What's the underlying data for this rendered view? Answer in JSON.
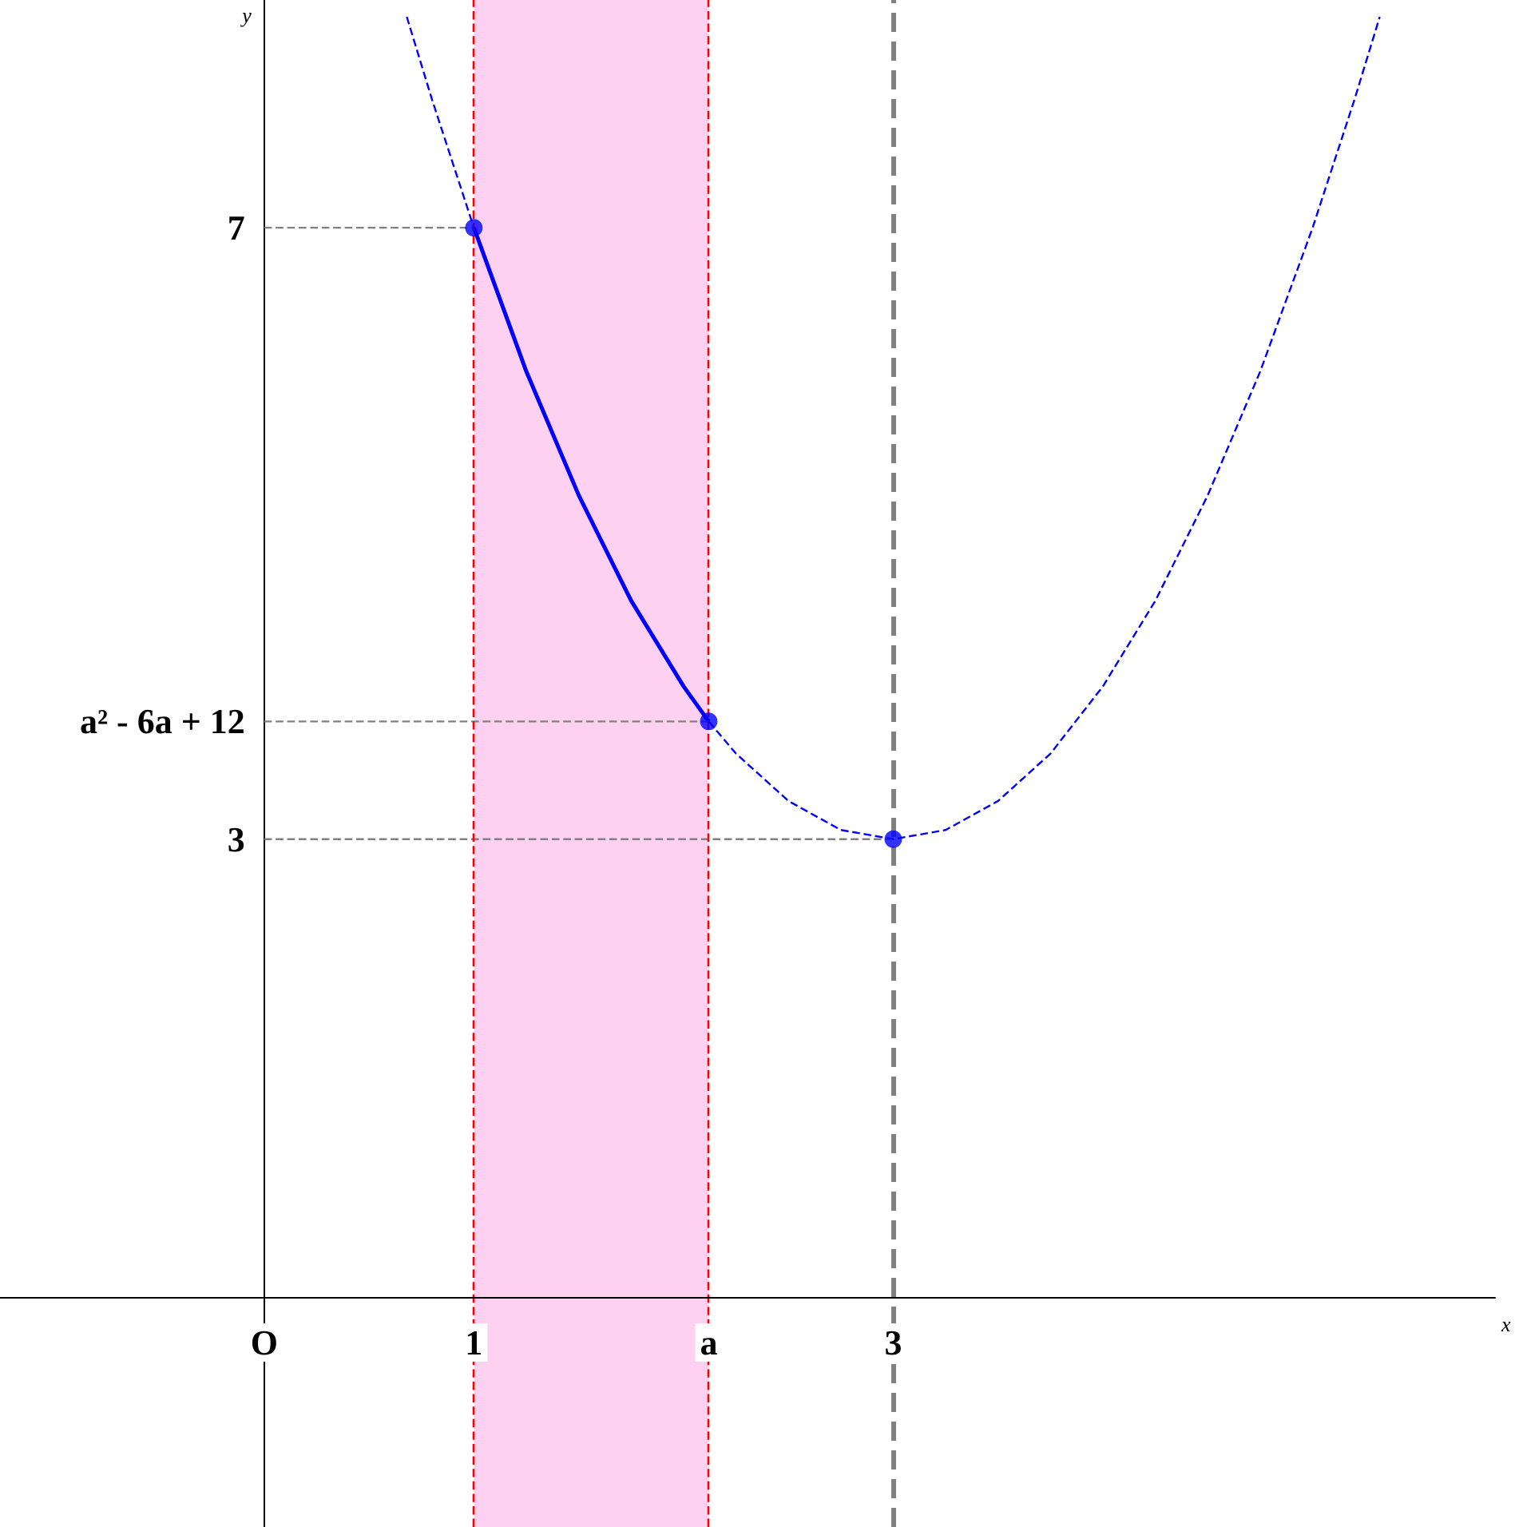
{
  "chart_data": {
    "type": "line",
    "xlabel": "x",
    "ylabel": "y",
    "xlim": [
      -1.26,
      5.87
    ],
    "ylim": [
      -1.5,
      8.49
    ],
    "xticks": [
      {
        "value": 0,
        "label": "O"
      },
      1,
      {
        "value": 2.12,
        "label": "a"
      },
      3
    ],
    "yticks": [
      3,
      {
        "value": 3.77,
        "label": "a² - 6a + 12"
      },
      7
    ],
    "grid": false,
    "series": [
      {
        "x": [
          0.68,
          0.8,
          1,
          1.25,
          1.5,
          1.75,
          2,
          2.12,
          2.25,
          2.5,
          2.75,
          3,
          3.25,
          3.5,
          3.75,
          4,
          4.25,
          4.5,
          4.75,
          5,
          5.2,
          5.32
        ],
        "values": [
          8.38,
          7.84,
          7,
          6.06,
          5.25,
          4.56,
          4,
          3.77,
          3.56,
          3.25,
          3.06,
          3,
          3.06,
          3.25,
          3.56,
          4,
          4.56,
          5.25,
          6.06,
          7,
          7.84,
          8.38
        ],
        "color": "#0000ff",
        "line_style": "dashed",
        "marker": "none"
      },
      {
        "x": [
          1,
          1.25,
          1.5,
          1.75,
          2,
          2.12
        ],
        "values": [
          7,
          6.06,
          5.25,
          4.56,
          4,
          3.77
        ],
        "color": "#0000ff",
        "line_style": "solid",
        "marker": "none"
      },
      {
        "x": [
          0,
          1
        ],
        "values": [
          7,
          7
        ],
        "color": "#808080",
        "line_style": "dashed",
        "marker": "none"
      },
      {
        "x": [
          0,
          2.12
        ],
        "values": [
          3.77,
          3.77
        ],
        "color": "#808080",
        "line_style": "dashed",
        "marker": "none"
      },
      {
        "x": [
          0,
          3
        ],
        "values": [
          3,
          3
        ],
        "color": "#808080",
        "line_style": "dashed",
        "marker": "none"
      },
      {
        "type": "scatter",
        "x": [
          1,
          2.12,
          3
        ],
        "values": [
          7,
          3.77,
          3
        ],
        "color": "#0000ff",
        "marker": "circle"
      }
    ],
    "ref_lines": [
      {
        "axis": "x",
        "value": 1,
        "color": "#ff0000",
        "line_style": "dashed"
      },
      {
        "axis": "x",
        "value": 2.12,
        "color": "#ff0000",
        "line_style": "dashed"
      },
      {
        "axis": "x",
        "value": 3,
        "color": "#808080",
        "line_style": "dashed"
      }
    ],
    "bands": [
      {
        "axis": "x",
        "from": 1,
        "to": 2.12,
        "color": "#ff99dd"
      }
    ]
  }
}
